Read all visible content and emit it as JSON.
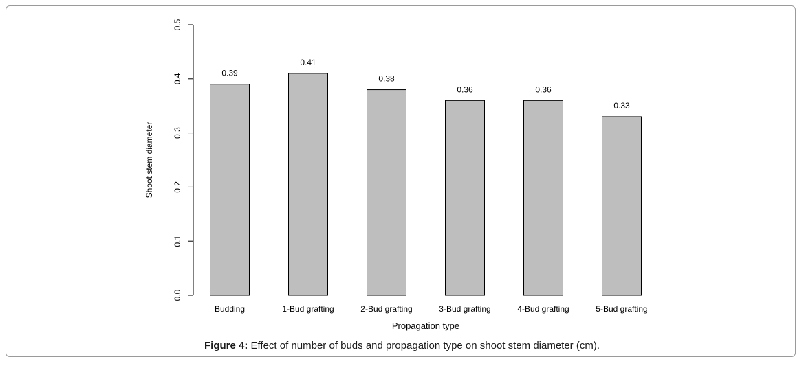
{
  "chart_data": {
    "type": "bar",
    "categories": [
      "Budding",
      "1-Bud grafting",
      "2-Bud grafting",
      "3-Bud grafting",
      "4-Bud grafting",
      "5-Bud grafting"
    ],
    "values": [
      0.39,
      0.41,
      0.38,
      0.36,
      0.36,
      0.33
    ],
    "data_labels": [
      "0.39",
      "0.41",
      "0.38",
      "0.36",
      "0.36",
      "0.33"
    ],
    "xlabel": "Propagation type",
    "ylabel": "Shoot stem diameter",
    "ylim": [
      0,
      0.5
    ],
    "yticks": [
      0,
      0.1,
      0.2,
      0.3,
      0.4,
      0.5
    ],
    "ytick_labels": [
      "0.0",
      "0.1",
      "0.2",
      "0.3",
      "0.4",
      "0.5"
    ],
    "grid": false,
    "bar_color": "#bebebe",
    "bar_edge_color": "#000000"
  },
  "caption": {
    "lead": "Figure 4:",
    "text": " Effect of number of buds and propagation type on shoot stem diameter (cm)."
  }
}
